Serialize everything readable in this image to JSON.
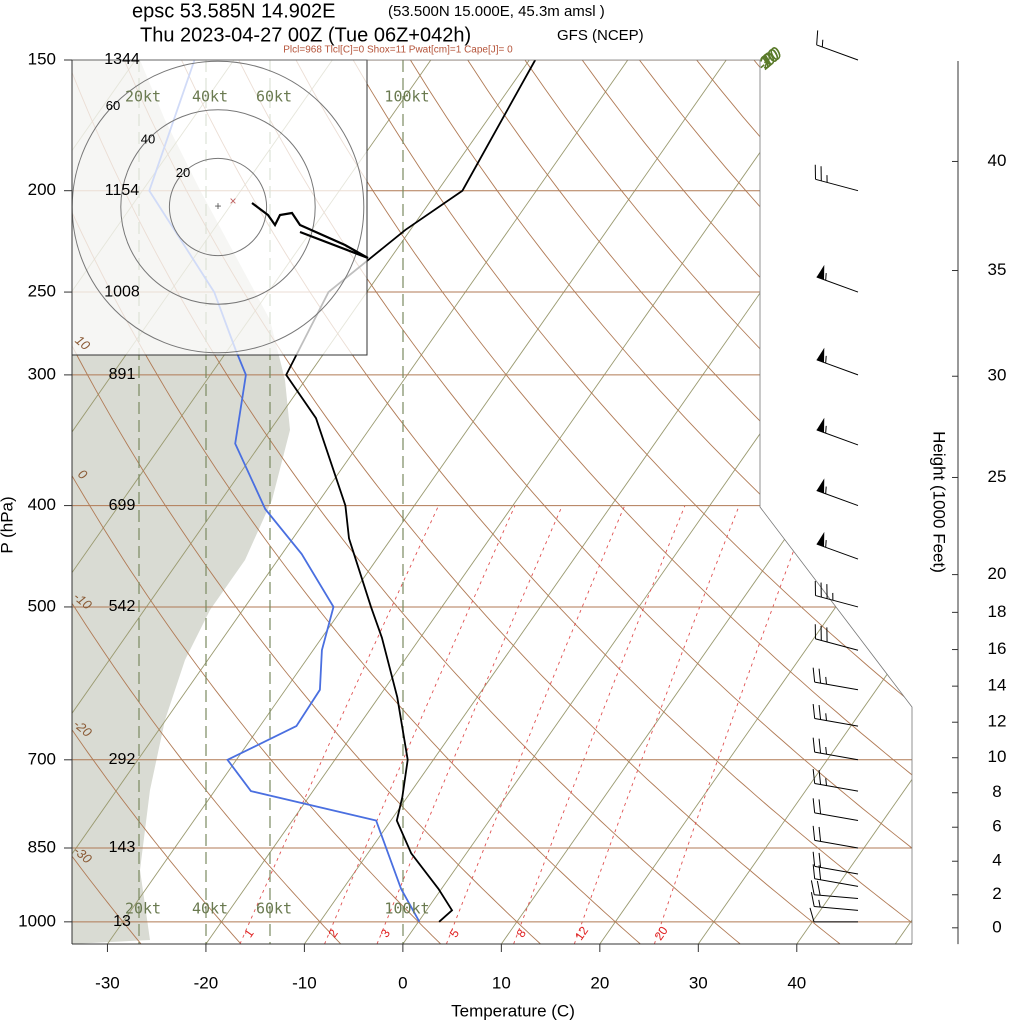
{
  "chart_data": {
    "type": "skewt",
    "title": "epsc 53.585N 14.902E",
    "location": "(53.500N 15.000E,  45.3m amsl )",
    "subtitle": "Thu 2023-04-27 00Z (Tue 06Z+042h)",
    "model": "GFS (NCEP)",
    "indices": "Plcl=968 Tlcl[C]=0 Shox=11 Pwat[cm]=1 Cape[J]= 0",
    "x_label": "Temperature (C)",
    "y_label": "P (hPa)",
    "y2_label": "Height (1000 Feet)",
    "xlim": [
      -33.6,
      51.7
    ],
    "xticks": [
      -30,
      -20,
      -10,
      0,
      10,
      20,
      30,
      40
    ],
    "ylim": [
      1050,
      150
    ],
    "log_y": true,
    "yticks": [
      1000,
      850,
      700,
      500,
      400,
      300,
      250,
      200,
      150
    ],
    "geopotential_heights": [
      13,
      143,
      292,
      542,
      699,
      891,
      1008,
      1154,
      1344
    ],
    "y2lim": [
      -1.0,
      44.6
    ],
    "y2ticks": [
      0,
      2,
      4,
      6,
      8,
      10,
      12,
      14,
      16,
      18,
      20,
      25,
      30,
      35,
      40
    ],
    "isotherm_labels": [
      -20,
      -10,
      0,
      10,
      20,
      30
    ],
    "dry_adiabat_labels": [
      10,
      0,
      -10,
      -20,
      -30
    ],
    "mixing_ratio_labels": [
      1,
      2,
      3,
      5,
      8,
      12,
      20
    ],
    "series": [
      {
        "color": "#000000",
        "pressure": [
          1000,
          975,
          930,
          860,
          800,
          760,
          700,
          610,
          535,
          500,
          430,
          400,
          330,
          300,
          250,
          218,
          200,
          150
        ],
        "values": [
          2.1,
          2.6,
          -0.3,
          -5.6,
          -9.4,
          -10.5,
          -12.6,
          -18.1,
          -23.9,
          -27.2,
          -34.3,
          -37.0,
          -46.2,
          -52.3,
          -53.9,
          -50.5,
          -47.5,
          -49.4
        ]
      },
      {
        "color": "#4a6fe0",
        "pressure": [
          1000,
          930,
          800,
          750,
          700,
          650,
          600,
          550,
          500,
          445,
          403,
          349,
          300,
          284,
          250,
          200,
          150
        ],
        "values": [
          0.1,
          -4.1,
          -11.5,
          -26.3,
          -30.9,
          -26.3,
          -26.5,
          -29.1,
          -31.0,
          -38.0,
          -44.9,
          -52.6,
          -56.4,
          -59.2,
          -65.5,
          -79.3,
          -84.0
        ]
      }
    ],
    "winds": {
      "pressure": [
        150,
        200,
        250,
        300,
        350,
        400,
        450,
        500,
        550,
        600,
        650,
        700,
        750,
        800,
        850,
        900,
        925,
        950,
        975,
        1000
      ],
      "speed": [
        15,
        25,
        55,
        55,
        55,
        55,
        55,
        35,
        30,
        25,
        25,
        25,
        25,
        20,
        20,
        20,
        20,
        20,
        15,
        10
      ],
      "direction": [
        290,
        285,
        290,
        290,
        290,
        290,
        290,
        285,
        285,
        280,
        280,
        280,
        280,
        280,
        280,
        280,
        280,
        275,
        275,
        270
      ]
    },
    "hodograph": {
      "ring_labels": [
        20,
        40,
        60
      ],
      "speed_labels": [
        "20kt",
        "40kt",
        "60kt",
        "100kt"
      ]
    }
  }
}
